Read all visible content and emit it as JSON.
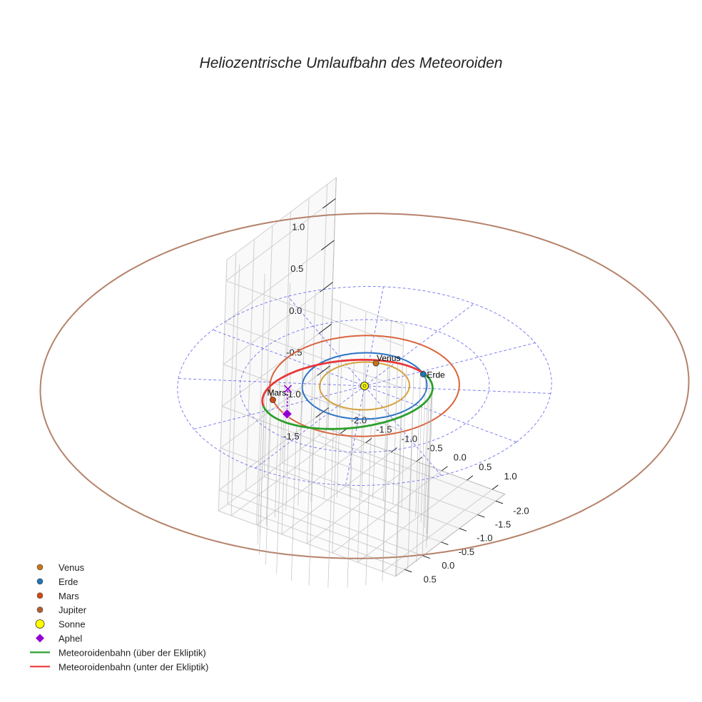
{
  "chart_data": {
    "type": "line",
    "title": "Heliozentrische Umlaufbahn des Meteoroiden",
    "xlabel": "",
    "ylabel": "",
    "zlabel": "",
    "xlim": [
      -2.25,
      1.25
    ],
    "ylim": [
      -2.25,
      0.75
    ],
    "zlim": [
      -1.75,
      1.25
    ],
    "x_ticks": [
      "-2.0",
      "-1.5",
      "-1.0",
      "-0.5",
      "0.0",
      "0.5",
      "1.0"
    ],
    "y_ticks": [
      "-2.0",
      "-1.5",
      "-1.0",
      "-0.5",
      "0.0",
      "0.5"
    ],
    "z_ticks": [
      "-1.5",
      "-1.0",
      "-0.5",
      "0.0",
      "0.5",
      "1.0"
    ],
    "grid": true,
    "legend_position": "bottom-left",
    "planet_orbits": [
      {
        "name": "Venus",
        "radius_au": 0.72,
        "color": "#d4a23c"
      },
      {
        "name": "Erde",
        "radius_au": 1.0,
        "color": "#2a73c6"
      },
      {
        "name": "Mars",
        "radius_au": 1.52,
        "color": "#d9643d"
      },
      {
        "name": "Jupiter",
        "radius_au": 5.2,
        "color": "#b5826a"
      }
    ],
    "planets": [
      {
        "name": "Venus",
        "label": "Venus",
        "position_au": [
          -0.25,
          -0.66,
          0.0
        ],
        "marker_color": "#c8731a"
      },
      {
        "name": "Erde",
        "label": "Erde",
        "position_au": [
          0.57,
          -0.82,
          0.0
        ],
        "marker_color": "#1f77b4"
      },
      {
        "name": "Mars",
        "label": "Mars",
        "position_au": [
          -0.97,
          1.17,
          0.0
        ],
        "marker_color": "#d24a12"
      },
      {
        "name": "Jupiter",
        "label": "",
        "position_au": null,
        "marker_color": "#b25d33"
      }
    ],
    "sun": {
      "name": "Sonne",
      "position_au": [
        0,
        0,
        0
      ],
      "marker_color": "#ffff00"
    },
    "aphelion": {
      "name": "Aphel",
      "position_au": [
        -0.26,
        1.78,
        0.19
      ],
      "marker_color": "#9400d3"
    },
    "meteoroid_orbit": {
      "semi_major_axis_au": 1.395,
      "eccentricity": 0.29,
      "perihelion_direction_deg": -83,
      "inclination_deg": 6,
      "ascending_node_direction": [
        0.57,
        -0.82
      ],
      "series": [
        {
          "name": "Meteoroidenbahn (über der Ekliptik)",
          "color": "#2ca02c"
        },
        {
          "name": "Meteoroidenbahn (unter der Ekliptik)",
          "color": "#e8383a"
        }
      ]
    },
    "reference_grid": {
      "circle_radii_au": [
        1,
        2,
        3
      ],
      "radial_lines": 12,
      "color": "#5a5af0"
    }
  },
  "legend": [
    {
      "label": "Venus",
      "kind": "dot",
      "color": "#c8731a"
    },
    {
      "label": "Erde",
      "kind": "dot",
      "color": "#1f77b4"
    },
    {
      "label": "Mars",
      "kind": "dot",
      "color": "#d24a12"
    },
    {
      "label": "Jupiter",
      "kind": "dot",
      "color": "#b25d33"
    },
    {
      "label": "Sonne",
      "kind": "sun",
      "color": "#ffff00"
    },
    {
      "label": "Aphel",
      "kind": "diamond",
      "color": "#9400d3"
    },
    {
      "label": "Meteoroidenbahn (über der Ekliptik)",
      "kind": "line",
      "color": "#2ca02c"
    },
    {
      "label": "Meteoroidenbahn (unter der Ekliptik)",
      "kind": "line",
      "color": "#e8383a"
    }
  ]
}
